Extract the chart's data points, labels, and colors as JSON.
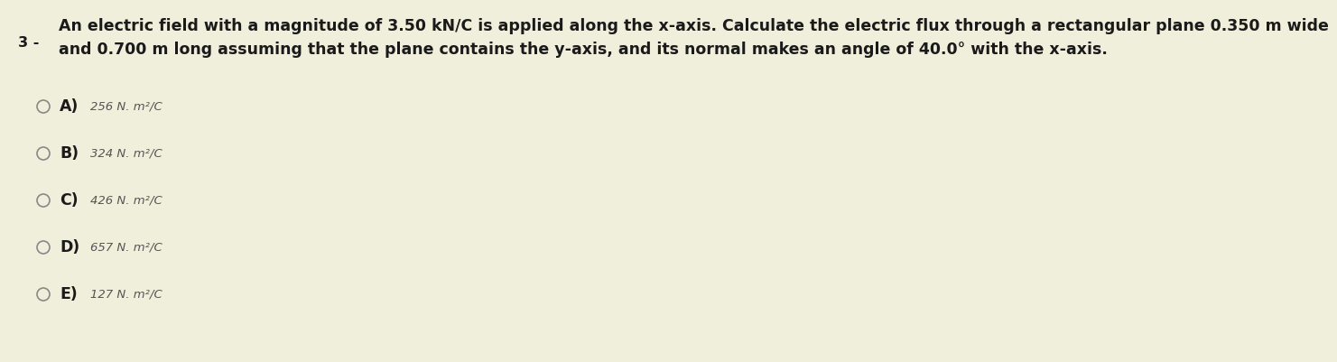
{
  "background_color": "#f0efdc",
  "question_number": "3 -",
  "question_text_line1": "An electric field with a magnitude of 3.50 kN/C is applied along the x-axis. Calculate the electric flux through a rectangular plane 0.350 m wide",
  "question_text_line2": "and 0.700 m long assuming that the plane contains the y-axis, and its normal makes an angle of 40.0° with the x-axis.",
  "options": [
    {
      "label": "A)",
      "value": "256 N. m²/C"
    },
    {
      "label": "B)",
      "value": "324 N. m²/C"
    },
    {
      "label": "C)",
      "value": "426 N. m²/C"
    },
    {
      "label": "D)",
      "value": "657 N. m²/C"
    },
    {
      "label": "E)",
      "value": "127 N. m²/C"
    }
  ],
  "question_fontsize": 12.5,
  "option_label_fontsize": 12.5,
  "option_value_fontsize": 9.5,
  "question_number_fontsize": 11.5,
  "text_color": "#1a1a1a",
  "option_label_color": "#1a1a1a",
  "option_value_color": "#555555",
  "circle_color": "#888888"
}
